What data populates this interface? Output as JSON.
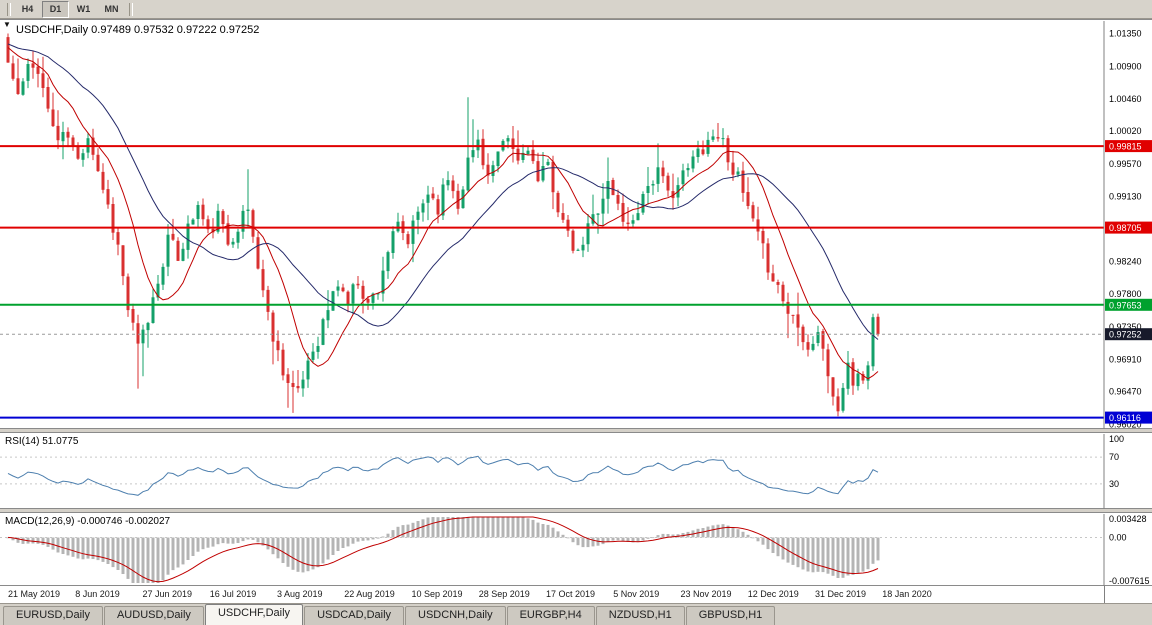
{
  "toolbar": {
    "timeframes": [
      "H4",
      "D1",
      "W1",
      "MN"
    ],
    "active": "D1"
  },
  "chart": {
    "quote_line": "USDCHF,Daily 0.97489 0.97532 0.97222 0.97252",
    "price_axis_ticks": [
      "1.01350",
      "1.00900",
      "1.00460",
      "1.00020",
      "0.99570",
      "0.99130",
      "0.98690",
      "0.98240",
      "0.97800",
      "0.97350",
      "0.96910",
      "0.96470",
      "0.96020"
    ],
    "levels": [
      {
        "value": 0.99815,
        "label": "0.99815",
        "color": "#e00000"
      },
      {
        "value": 0.98705,
        "label": "0.98705",
        "color": "#e00000"
      },
      {
        "value": 0.97653,
        "label": "0.97653",
        "color": "#00a12e"
      },
      {
        "value": 0.96116,
        "label": "0.96116",
        "color": "#0000d4"
      }
    ],
    "current_price": {
      "value": 0.97252,
      "label": "0.97252",
      "bg": "#171a2b"
    },
    "colors": {
      "bull": "#14a06a",
      "bear": "#d93030",
      "ma_fast": "#c00000",
      "ma_slow": "#252a6a",
      "background": "#ffffff",
      "axis_text": "#000000"
    }
  },
  "rsi_panel": {
    "label": "RSI(14) 51.0775",
    "period": 14,
    "value": 51.0775,
    "line_color": "#4d7fae",
    "levels": [
      70,
      30
    ],
    "ticks": [
      {
        "label": "100",
        "value": 100
      },
      {
        "label": "70",
        "value": 70
      },
      {
        "label": "30",
        "value": 30
      }
    ]
  },
  "macd_panel": {
    "label": "MACD(12,26,9) -0.000746 -0.002027",
    "fast": 12,
    "slow": 26,
    "signal_period": 9,
    "main_value": -0.000746,
    "signal_value": -0.002027,
    "hist_color": "#b4b4b4",
    "signal_color": "#c00000",
    "range": [
      -0.007615,
      0.003428
    ],
    "ticks": [
      {
        "label": "0.003428",
        "value": 0.003428
      },
      {
        "label": "0.00",
        "value": 0
      },
      {
        "label": "-0.007615",
        "value": -0.007615
      }
    ]
  },
  "date_axis": {
    "labels": [
      "21 May 2019",
      "8 Jun 2019",
      "27 Jun 2019",
      "16 Jul 2019",
      "3 Aug 2019",
      "22 Aug 2019",
      "10 Sep 2019",
      "28 Sep 2019",
      "17 Oct 2019",
      "5 Nov 2019",
      "23 Nov 2019",
      "12 Dec 2019",
      "31 Dec 2019",
      "18 Jan 2020"
    ]
  },
  "tabs": [
    {
      "label": "EURUSD,Daily",
      "active": false
    },
    {
      "label": "AUDUSD,Daily",
      "active": false
    },
    {
      "label": "USDCHF,Daily",
      "active": true
    },
    {
      "label": "USDCAD,Daily",
      "active": false
    },
    {
      "label": "USDCNH,Daily",
      "active": false
    },
    {
      "label": "EURGBP,H4",
      "active": false
    },
    {
      "label": "NZDUSD,H1",
      "active": false
    },
    {
      "label": "GBPUSD,H1",
      "active": false
    }
  ],
  "chart_data": {
    "type": "candlestick",
    "symbol": "USDCHF",
    "timeframe": "Daily",
    "bar_count": 175,
    "y_range": [
      0.9596,
      1.0152
    ],
    "first_open": 1.013,
    "last_bar": {
      "open": 0.97489,
      "high": 0.97532,
      "low": 0.97222,
      "close": 0.97252
    },
    "noise": 0.0024,
    "seed": 11,
    "close_path": [
      [
        0,
        1.0095
      ],
      [
        2,
        1.005
      ],
      [
        4,
        1.0085
      ],
      [
        6,
        1.009
      ],
      [
        8,
        1.003
      ],
      [
        10,
        0.999
      ],
      [
        12,
        0.9995
      ],
      [
        14,
        0.996
      ],
      [
        16,
        1.0
      ],
      [
        18,
        0.995
      ],
      [
        20,
        0.99
      ],
      [
        22,
        0.9845
      ],
      [
        24,
        0.976
      ],
      [
        26,
        0.9705
      ],
      [
        28,
        0.9745
      ],
      [
        30,
        0.98
      ],
      [
        32,
        0.9855
      ],
      [
        34,
        0.983
      ],
      [
        36,
        0.987
      ],
      [
        38,
        0.99
      ],
      [
        40,
        0.986
      ],
      [
        42,
        0.9885
      ],
      [
        44,
        0.985
      ],
      [
        46,
        0.9875
      ],
      [
        48,
        0.9895
      ],
      [
        50,
        0.982
      ],
      [
        52,
        0.975
      ],
      [
        54,
        0.97
      ],
      [
        56,
        0.966
      ],
      [
        58,
        0.964
      ],
      [
        60,
        0.969
      ],
      [
        62,
        0.972
      ],
      [
        64,
        0.976
      ],
      [
        66,
        0.9795
      ],
      [
        68,
        0.977
      ],
      [
        70,
        0.98
      ],
      [
        72,
        0.9765
      ],
      [
        74,
        0.979
      ],
      [
        76,
        0.984
      ],
      [
        78,
        0.987
      ],
      [
        80,
        0.985
      ],
      [
        82,
        0.989
      ],
      [
        84,
        0.992
      ],
      [
        86,
        0.99
      ],
      [
        88,
        0.994
      ],
      [
        90,
        0.9905
      ],
      [
        92,
        0.996
      ],
      [
        94,
        0.999
      ],
      [
        96,
        0.994
      ],
      [
        98,
        0.9965
      ],
      [
        100,
        0.999
      ],
      [
        102,
        0.996
      ],
      [
        104,
        0.9985
      ],
      [
        106,
        0.993
      ],
      [
        108,
        0.9955
      ],
      [
        110,
        0.99
      ],
      [
        112,
        0.9855
      ],
      [
        114,
        0.983
      ],
      [
        116,
        0.987
      ],
      [
        118,
        0.99
      ],
      [
        120,
        0.993
      ],
      [
        122,
        0.99
      ],
      [
        124,
        0.987
      ],
      [
        126,
        0.99
      ],
      [
        128,
        0.993
      ],
      [
        130,
        0.9945
      ],
      [
        132,
        0.9915
      ],
      [
        134,
        0.993
      ],
      [
        136,
        0.995
      ],
      [
        138,
        0.9975
      ],
      [
        140,
        0.999
      ],
      [
        142,
        1.0
      ],
      [
        144,
        0.997
      ],
      [
        146,
        0.9935
      ],
      [
        148,
        0.9895
      ],
      [
        150,
        0.9855
      ],
      [
        152,
        0.982
      ],
      [
        154,
        0.979
      ],
      [
        156,
        0.9755
      ],
      [
        158,
        0.9745
      ],
      [
        160,
        0.9705
      ],
      [
        162,
        0.973
      ],
      [
        164,
        0.967
      ],
      [
        166,
        0.9618
      ],
      [
        167,
        0.9655
      ],
      [
        168,
        0.9675
      ],
      [
        169,
        0.966
      ],
      [
        170,
        0.9673
      ],
      [
        171,
        0.9663
      ],
      [
        172,
        0.9682
      ],
      [
        173,
        0.9749
      ],
      [
        174,
        0.97252
      ]
    ],
    "forced_highs": [
      [
        0,
        1.0135
      ],
      [
        48,
        0.995
      ],
      [
        92,
        1.0048
      ],
      [
        93,
        1.0018
      ],
      [
        142,
        1.0013
      ],
      [
        143,
        1.0006
      ],
      [
        173,
        0.9753
      ]
    ],
    "forced_lows": [
      [
        26,
        0.9651
      ],
      [
        27,
        0.9668
      ],
      [
        56,
        0.9625
      ],
      [
        57,
        0.9618
      ],
      [
        165,
        0.9628
      ],
      [
        166,
        0.96135
      ]
    ]
  }
}
